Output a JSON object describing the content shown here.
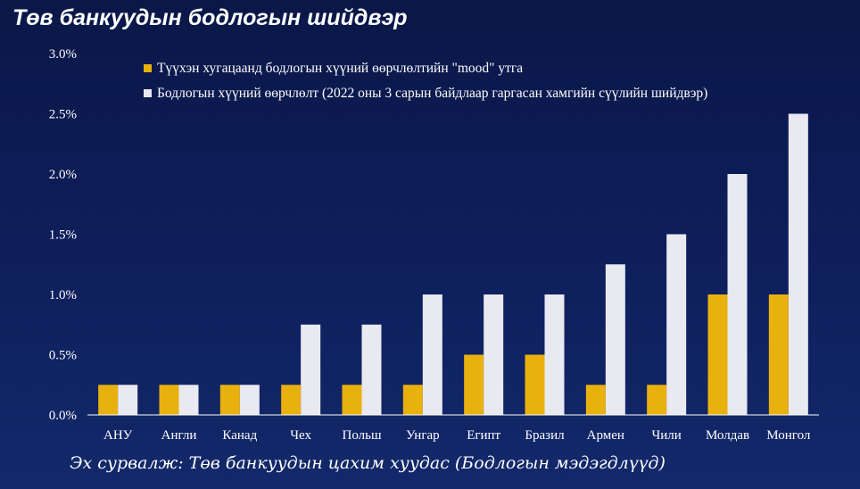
{
  "title": "Төв банкуудын бодлогын шийдвэр",
  "source": "Эх сурвалж: Төв банкуудын цахим хуудас (Бодлогын мэдэгдлүүд)",
  "colors": {
    "series1": "#e8b10d",
    "series2": "#e9e9f2",
    "axis": "#ffffff"
  },
  "chart_data": {
    "type": "bar",
    "title": "Төв банкуудын бодлогын шийдвэр",
    "xlabel": "",
    "ylabel": "",
    "ylim": [
      0,
      3.0
    ],
    "yticks": [
      "0.0%",
      "0.5%",
      "1.0%",
      "1.5%",
      "2.0%",
      "2.5%",
      "3.0%"
    ],
    "grid": false,
    "legend_position": "top",
    "categories": [
      "АНУ",
      "Англи",
      "Канад",
      "Чех",
      "Польш",
      "Унгар",
      "Египт",
      "Бразил",
      "Армен",
      "Чили",
      "Молдав",
      "Монгол"
    ],
    "series": [
      {
        "name": "Түүхэн хугацаанд бодлогын хүүний өөрчлөлтийн \"mood\" утга",
        "values": [
          0.25,
          0.25,
          0.25,
          0.25,
          0.25,
          0.25,
          0.5,
          0.5,
          0.25,
          0.25,
          1.0,
          1.0
        ]
      },
      {
        "name": "Бодлогын хүүний өөрчлөлт (2022 оны 3 сарын байдлаар гаргасан хамгийн сүүлийн шийдвэр)",
        "values": [
          0.25,
          0.25,
          0.25,
          0.75,
          0.75,
          1.0,
          1.0,
          1.0,
          1.25,
          1.5,
          2.0,
          2.5
        ]
      }
    ]
  }
}
